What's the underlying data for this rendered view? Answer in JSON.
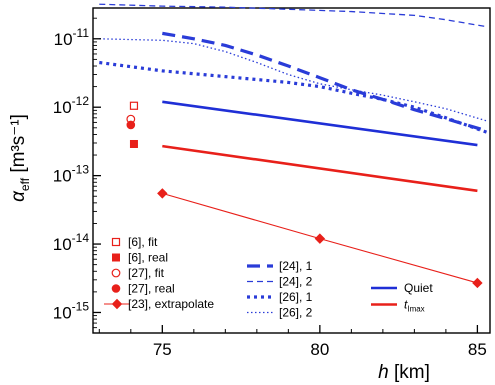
{
  "chart_data": {
    "type": "line",
    "title": "",
    "xlabel": {
      "var": "h",
      "unit": "[km]"
    },
    "ylabel": {
      "var": "α",
      "sub": "eff",
      "unit": "[m³s⁻¹]"
    },
    "xlim": [
      72.8,
      85.4
    ],
    "ylim_log10": [
      -15.3,
      -10.55
    ],
    "yscale": "log",
    "xticks": [
      75,
      80,
      85
    ],
    "xtick_labels": [
      "75",
      "80",
      "85"
    ],
    "yticks_exp": [
      -15,
      -14,
      -13,
      -12,
      -11
    ],
    "ytick_labels": [
      {
        "base": "10",
        "exp": "-15"
      },
      {
        "base": "10",
        "exp": "-14"
      },
      {
        "base": "10",
        "exp": "-13"
      },
      {
        "base": "10",
        "exp": "-12"
      },
      {
        "base": "10",
        "exp": "-11"
      }
    ],
    "grid": false,
    "series": [
      {
        "name": "[24], 2",
        "style": "dashed-thin",
        "color": "#2a3cd8",
        "x": [
          73,
          75,
          77,
          79,
          81,
          83,
          84,
          85.3
        ],
        "y": [
          3.2e-11,
          3e-11,
          2.9e-11,
          2.7e-11,
          2.5e-11,
          2.2e-11,
          1.9e-11,
          1.5e-11
        ]
      },
      {
        "name": "[24], 1",
        "style": "dashed-thick",
        "color": "#2a3cd8",
        "x": [
          75,
          76,
          77,
          78,
          79,
          80,
          81,
          82,
          83,
          84,
          85.3
        ],
        "y": [
          1.2e-11,
          1e-11,
          8e-12,
          5.8e-12,
          4e-12,
          2.7e-12,
          1.8e-12,
          1.3e-12,
          9.2e-13,
          6.8e-13,
          4.5e-13
        ]
      },
      {
        "name": "[26], 2",
        "style": "dotted-thin",
        "color": "#2a3cd8",
        "x": [
          73,
          75,
          76,
          77,
          78,
          79,
          80,
          81,
          82,
          83,
          84,
          85.3
        ],
        "y": [
          1e-11,
          9.5e-12,
          8.5e-12,
          6.5e-12,
          4.5e-12,
          3e-12,
          2.2e-12,
          1.8e-12,
          1.5e-12,
          1.2e-12,
          9.5e-13,
          6.3e-13
        ]
      },
      {
        "name": "[26], 1",
        "style": "dotted-thick",
        "color": "#2a3cd8",
        "x": [
          73,
          75,
          77,
          79,
          80,
          81,
          82,
          83,
          84,
          85.3
        ],
        "y": [
          4.5e-12,
          3.4e-12,
          2.8e-12,
          2.3e-12,
          2e-12,
          1.6e-12,
          1.3e-12,
          1e-12,
          7e-13,
          4.3e-13
        ]
      },
      {
        "name": "Quiet",
        "style": "solid",
        "color": "#1f2fd6",
        "x": [
          75,
          85
        ],
        "y": [
          1.2e-12,
          2.8e-13
        ]
      },
      {
        "name": "t",
        "name_sub": "Imax",
        "style": "solid",
        "color": "#e8201a",
        "x": [
          75,
          85
        ],
        "y": [
          2.7e-13,
          6e-14
        ]
      },
      {
        "name": "[23], extrapolate",
        "style": "line-diamond",
        "color": "#e8201a",
        "x": [
          75,
          80,
          85
        ],
        "y": [
          5.5e-14,
          1.2e-14,
          2.7e-15
        ]
      },
      {
        "name": "[6], fit",
        "style": "marker-open-square",
        "color": "#e8201a",
        "x": [
          74.1
        ],
        "y": [
          1.05e-12
        ]
      },
      {
        "name": "[6], real",
        "style": "marker-filled-square",
        "color": "#e8201a",
        "x": [
          74.1
        ],
        "y": [
          2.9e-13
        ]
      },
      {
        "name": "[27], fit",
        "style": "marker-open-circle",
        "color": "#e8201a",
        "x": [
          74.0
        ],
        "y": [
          6.7e-13
        ]
      },
      {
        "name": "[27], real",
        "style": "marker-filled-circle",
        "color": "#e8201a",
        "x": [
          74.0
        ],
        "y": [
          5.5e-13
        ]
      }
    ],
    "legend_groups": [
      {
        "placement": "bottom-left",
        "series": [
          "[6], fit",
          "[6], real",
          "[27], fit",
          "[27], real",
          "[23], extrapolate"
        ]
      },
      {
        "placement": "bottom-center",
        "series": [
          "[24], 1",
          "[24], 2",
          "[26], 1",
          "[26], 2"
        ]
      },
      {
        "placement": "bottom-right",
        "series": [
          "Quiet",
          "t"
        ]
      }
    ]
  }
}
